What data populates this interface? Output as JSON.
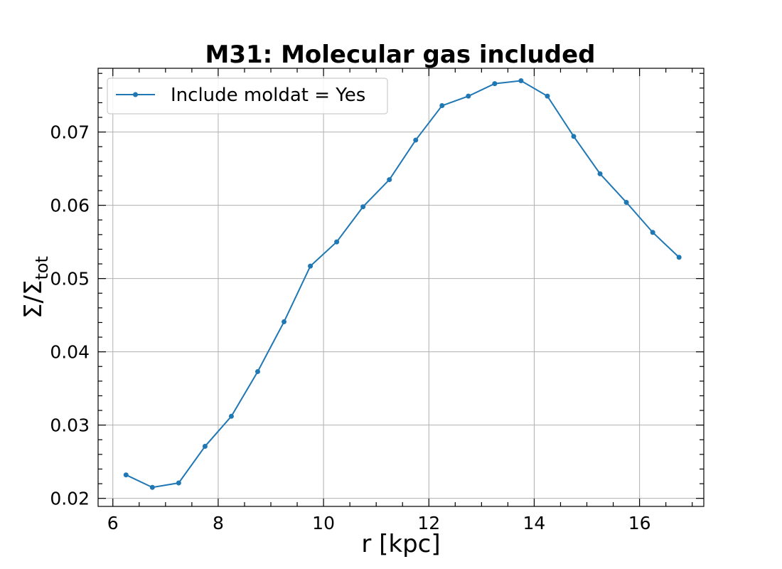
{
  "chart_data": {
    "type": "line",
    "title": "M31: Molecular gas included",
    "xlabel": "r [kpc]",
    "ylabel": "Σ/Σ",
    "ylabel_sub": "tot",
    "xlim": [
      5.72,
      17.22
    ],
    "ylim": [
      0.0189,
      0.0787
    ],
    "xticks": [
      6,
      8,
      10,
      12,
      14,
      16
    ],
    "yticks": [
      0.02,
      0.03,
      0.04,
      0.05,
      0.06,
      0.07
    ],
    "xtick_labels": [
      "6",
      "8",
      "10",
      "12",
      "14",
      "16"
    ],
    "ytick_labels": [
      "0.02",
      "0.03",
      "0.04",
      "0.05",
      "0.06",
      "0.07"
    ],
    "grid": true,
    "legend_position": "top-left",
    "color": "#1f77b4",
    "series": [
      {
        "name": "Include moldat = Yes",
        "x": [
          6.25,
          6.75,
          7.25,
          7.75,
          8.25,
          8.75,
          9.25,
          9.75,
          10.25,
          10.75,
          11.25,
          11.75,
          12.25,
          12.75,
          13.25,
          13.75,
          14.25,
          14.75,
          15.25,
          15.75,
          16.25,
          16.75
        ],
        "y": [
          0.0232,
          0.0215,
          0.0221,
          0.0271,
          0.0312,
          0.0373,
          0.0441,
          0.0517,
          0.055,
          0.0598,
          0.0635,
          0.0689,
          0.0736,
          0.0749,
          0.0766,
          0.077,
          0.0749,
          0.0694,
          0.0643,
          0.0604,
          0.0563,
          0.0529
        ]
      }
    ]
  }
}
